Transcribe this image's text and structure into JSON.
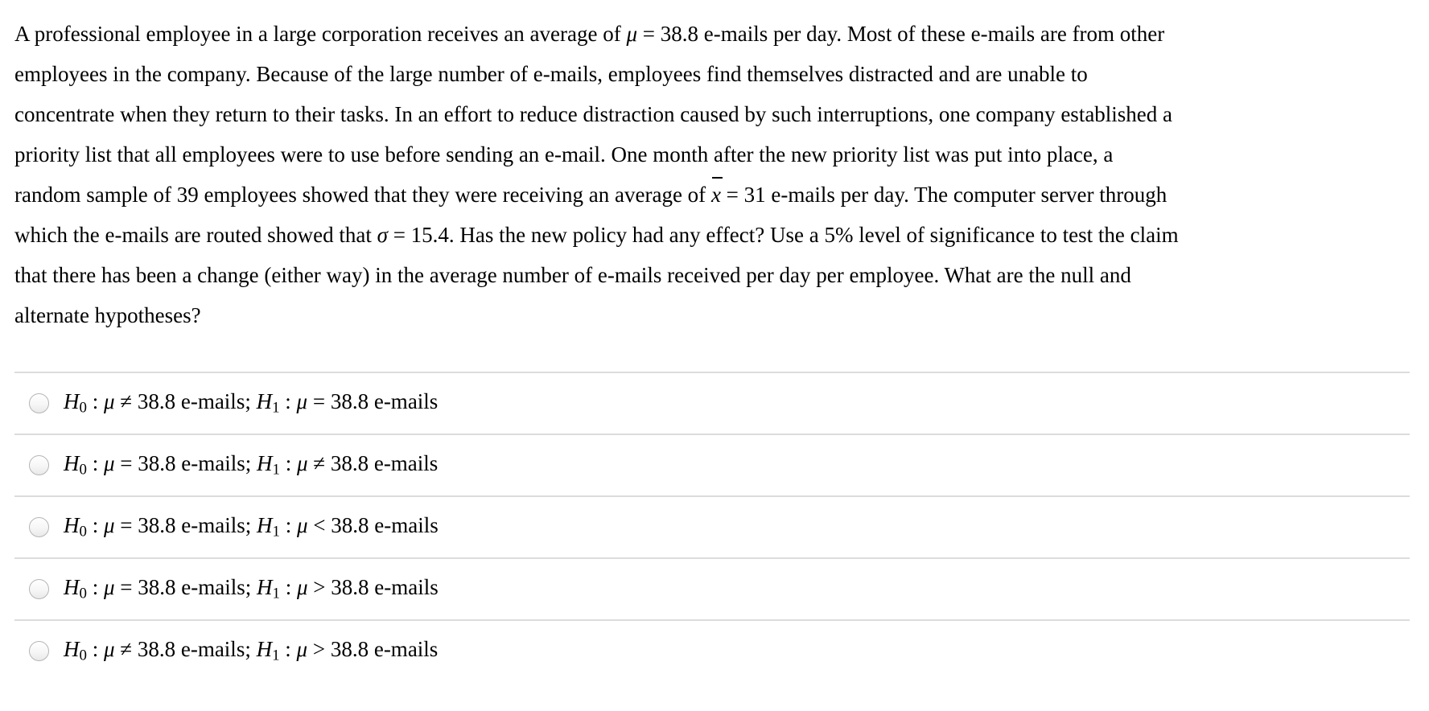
{
  "theme": {
    "background": "#ffffff",
    "text_color": "#000000",
    "divider_color": "#dcdcdc",
    "radio_border_color": "#b5b5b5"
  },
  "question": {
    "stats": {
      "population_mean": "38.8",
      "sample_size": "39",
      "sample_mean": "31",
      "sigma": "15.4",
      "significance_level": "5%"
    },
    "lines": [
      {
        "segments": [
          {
            "t": "A professional employee in a large corporation receives an average of ",
            "s": "r"
          },
          {
            "t": "μ",
            "s": "i"
          },
          {
            "t": " = 38.8 e-mails per day. Most of these e-mails are from other",
            "s": "r"
          }
        ]
      },
      {
        "segments": [
          {
            "t": "employees in the company. Because of the large number of e-mails, employees find themselves distracted and are unable to",
            "s": "r"
          }
        ]
      },
      {
        "segments": [
          {
            "t": "concentrate when they return to their tasks. In an effort to reduce distraction caused by such interruptions, one company established a",
            "s": "r"
          }
        ]
      },
      {
        "segments": [
          {
            "t": "priority list that all employees were to use before sending an e-mail. One month after the new priority list was put into place, a",
            "s": "r"
          }
        ]
      },
      {
        "segments": [
          {
            "t": "random sample of 39 employees showed that they were receiving an average of ",
            "s": "r"
          },
          {
            "t": "x",
            "s": "iov"
          },
          {
            "t": " = 31 e-mails per day. The computer server through",
            "s": "r"
          }
        ]
      },
      {
        "segments": [
          {
            "t": "which the e-mails are routed showed that ",
            "s": "r"
          },
          {
            "t": "σ",
            "s": "i"
          },
          {
            "t": " = 15.4. Has the new policy had any effect? Use a 5% level of significance to test the claim",
            "s": "r"
          }
        ]
      },
      {
        "segments": [
          {
            "t": "that there has been a change (either way) in the average number of e-mails received per day per employee. What are the null and",
            "s": "r"
          }
        ]
      },
      {
        "segments": [
          {
            "t": "alternate hypotheses?",
            "s": "r"
          }
        ]
      }
    ]
  },
  "options": [
    {
      "id": 1,
      "selected": false,
      "segments": [
        {
          "t": "H",
          "s": "i"
        },
        {
          "t": "0",
          "s": "sub"
        },
        {
          "t": " : ",
          "s": "r"
        },
        {
          "t": "μ",
          "s": "i"
        },
        {
          "t": " ≠ 38.8 e-mails; ",
          "s": "r"
        },
        {
          "t": "H",
          "s": "i"
        },
        {
          "t": "1",
          "s": "sub"
        },
        {
          "t": " : ",
          "s": "r"
        },
        {
          "t": "μ",
          "s": "i"
        },
        {
          "t": " = 38.8 e-mails",
          "s": "r"
        }
      ]
    },
    {
      "id": 2,
      "selected": false,
      "segments": [
        {
          "t": "H",
          "s": "i"
        },
        {
          "t": "0",
          "s": "sub"
        },
        {
          "t": " : ",
          "s": "r"
        },
        {
          "t": "μ",
          "s": "i"
        },
        {
          "t": " = 38.8 e-mails; ",
          "s": "r"
        },
        {
          "t": "H",
          "s": "i"
        },
        {
          "t": "1",
          "s": "sub"
        },
        {
          "t": " : ",
          "s": "r"
        },
        {
          "t": "μ",
          "s": "i"
        },
        {
          "t": " ≠ 38.8 e-mails",
          "s": "r"
        }
      ]
    },
    {
      "id": 3,
      "selected": false,
      "segments": [
        {
          "t": "H",
          "s": "i"
        },
        {
          "t": "0",
          "s": "sub"
        },
        {
          "t": " : ",
          "s": "r"
        },
        {
          "t": "μ",
          "s": "i"
        },
        {
          "t": " = 38.8 e-mails; ",
          "s": "r"
        },
        {
          "t": "H",
          "s": "i"
        },
        {
          "t": "1",
          "s": "sub"
        },
        {
          "t": " : ",
          "s": "r"
        },
        {
          "t": "μ",
          "s": "i"
        },
        {
          "t": " < 38.8 e-mails",
          "s": "r"
        }
      ]
    },
    {
      "id": 4,
      "selected": false,
      "segments": [
        {
          "t": "H",
          "s": "i"
        },
        {
          "t": "0",
          "s": "sub"
        },
        {
          "t": " : ",
          "s": "r"
        },
        {
          "t": "μ",
          "s": "i"
        },
        {
          "t": " = 38.8 e-mails; ",
          "s": "r"
        },
        {
          "t": "H",
          "s": "i"
        },
        {
          "t": "1",
          "s": "sub"
        },
        {
          "t": " : ",
          "s": "r"
        },
        {
          "t": "μ",
          "s": "i"
        },
        {
          "t": " > 38.8 e-mails",
          "s": "r"
        }
      ]
    },
    {
      "id": 5,
      "selected": false,
      "segments": [
        {
          "t": "H",
          "s": "i"
        },
        {
          "t": "0",
          "s": "sub"
        },
        {
          "t": " : ",
          "s": "r"
        },
        {
          "t": "μ",
          "s": "i"
        },
        {
          "t": " ≠ 38.8 e-mails; ",
          "s": "r"
        },
        {
          "t": "H",
          "s": "i"
        },
        {
          "t": "1",
          "s": "sub"
        },
        {
          "t": " : ",
          "s": "r"
        },
        {
          "t": "μ",
          "s": "i"
        },
        {
          "t": " > 38.8 e-mails",
          "s": "r"
        }
      ]
    }
  ]
}
